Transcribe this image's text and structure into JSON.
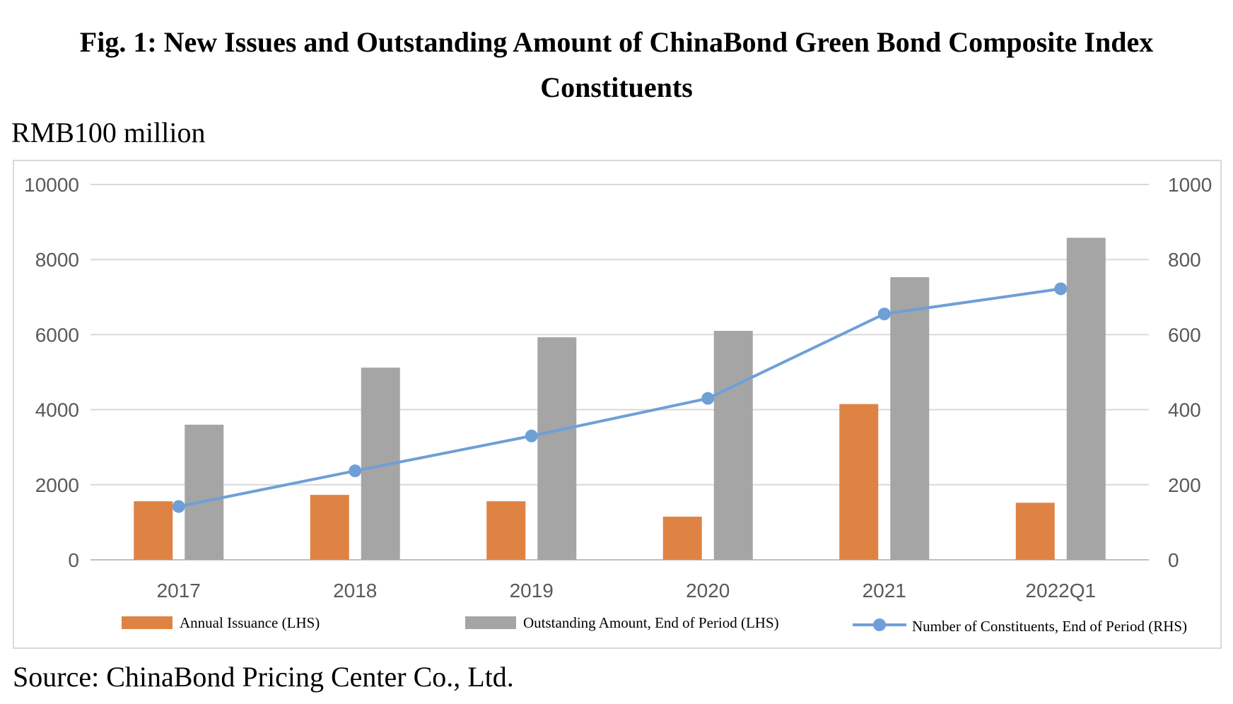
{
  "figure": {
    "title": "Fig. 1: New Issues and Outstanding Amount of ChinaBond Green Bond Composite Index Constituents",
    "unit_label": "RMB100 million",
    "source": "Source: ChinaBond Pricing Center Co., Ltd."
  },
  "chart_data": {
    "type": "bar",
    "categories": [
      "2017",
      "2018",
      "2019",
      "2020",
      "2021",
      "2022Q1"
    ],
    "series": [
      {
        "name": "Annual Issuance (LHS)",
        "type": "bar",
        "axis": "left",
        "color": "#df8344",
        "values": [
          1560,
          1730,
          1560,
          1150,
          4150,
          1520
        ]
      },
      {
        "name": "Outstanding Amount, End of Period (LHS)",
        "type": "bar",
        "axis": "left",
        "color": "#a5a5a5",
        "values": [
          3600,
          5120,
          5930,
          6100,
          7530,
          8580
        ]
      },
      {
        "name": "Number of Constituents, End of Period (RHS)",
        "type": "line",
        "axis": "right",
        "color": "#6f9fd7",
        "values": [
          142,
          237,
          330,
          430,
          655,
          722
        ]
      }
    ],
    "y_left": {
      "ylim": [
        0,
        10000
      ],
      "ticks": [
        "0",
        "2000",
        "4000",
        "6000",
        "8000",
        "10000"
      ]
    },
    "y_right": {
      "ylim": [
        0,
        1000
      ],
      "ticks": [
        "0",
        "200",
        "400",
        "600",
        "800",
        "1000"
      ]
    },
    "grid": true,
    "legend_position": "bottom"
  }
}
